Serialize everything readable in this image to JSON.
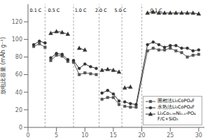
{
  "chart_data": {
    "type": "line",
    "ylabel": "放电比容量 (mAh g⁻¹)",
    "xlim": [
      0,
      31
    ],
    "ylim": [
      0,
      140
    ],
    "xticks": [
      0,
      5,
      10,
      15,
      20,
      25,
      30
    ],
    "yticks": [
      0,
      20,
      40,
      60,
      80,
      100,
      120
    ],
    "grid": false,
    "legend": "lower right",
    "vlines": [
      3.0,
      8.0,
      12.5,
      16.5,
      20.0
    ],
    "annotations": [
      {
        "text": "0.1 C",
        "x": 0.3,
        "y": 136
      },
      {
        "text": "0.5 C",
        "x": 3.5,
        "y": 136
      },
      {
        "text": "1.0 C",
        "x": 8.2,
        "y": 136
      },
      {
        "text": "2.0 C",
        "x": 11.8,
        "y": 136
      },
      {
        "text": "5.0 C",
        "x": 15.2,
        "y": 136
      },
      {
        "text": "0.1 C",
        "x": 21.5,
        "y": 136
      }
    ],
    "series": [
      {
        "name": "固相法Li₂CoPO₄F",
        "color": "#555555",
        "marker": "square",
        "x": [
          1,
          2,
          3,
          null,
          4,
          5,
          6,
          7,
          null,
          8,
          9,
          10,
          11,
          12,
          null,
          13,
          14,
          15,
          16,
          null,
          17,
          18,
          19,
          21,
          22,
          23,
          24,
          25,
          26,
          27,
          28,
          29,
          30
        ],
        "values": [
          92,
          95,
          91,
          null,
          76,
          82,
          81,
          75,
          null,
          74,
          60,
          62,
          61,
          60,
          null,
          32,
          34,
          34,
          26,
          null,
          24,
          23,
          23,
          87,
          90,
          88,
          88,
          90,
          87,
          85,
          80,
          82,
          83
        ]
      },
      {
        "name": "水热法Li₂CoPO₄F",
        "color": "#333333",
        "marker": "circle",
        "x": [
          1,
          2,
          3,
          null,
          4,
          5,
          6,
          7,
          null,
          8,
          9,
          10,
          11,
          12,
          null,
          13,
          14,
          15,
          16,
          null,
          17,
          18,
          19,
          21,
          22,
          23,
          24,
          25,
          26,
          27,
          28,
          29,
          30
        ],
        "values": [
          94,
          98,
          96,
          null,
          79,
          84,
          83,
          77,
          null,
          76,
          67,
          72,
          69,
          67,
          null,
          39,
          42,
          38,
          30,
          null,
          29,
          27,
          26,
          94,
          97,
          94,
          91,
          93,
          93,
          90,
          90,
          87,
          88
        ]
      },
      {
        "name": "Li₂Co₀.₉₉Ni₀.₀₇PO₄F/C+SiO₂",
        "color": "#333333",
        "marker": "triangle",
        "x": [
          4,
          5,
          6,
          7,
          null,
          9,
          10,
          null,
          13,
          14,
          15,
          16,
          null,
          17,
          18,
          null,
          21,
          22,
          23,
          24,
          25,
          26,
          27,
          28,
          29,
          30
        ],
        "values": [
          107,
          109,
          108,
          106,
          null,
          90,
          88,
          null,
          65,
          66,
          65,
          63,
          null,
          45,
          46,
          null,
          130,
          131,
          130,
          130,
          130,
          130,
          130,
          130,
          130,
          129
        ]
      }
    ]
  }
}
